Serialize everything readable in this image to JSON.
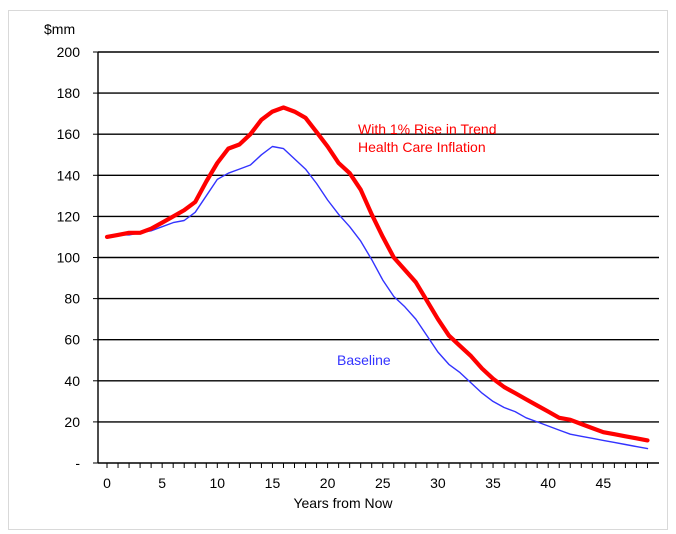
{
  "chart_data": {
    "type": "line",
    "title": "",
    "xlabel": "Years from Now",
    "ylabel": "$mm",
    "xlim": [
      0,
      49
    ],
    "ylim": [
      0,
      200
    ],
    "x_ticks": [
      0,
      5,
      10,
      15,
      20,
      25,
      30,
      35,
      40,
      45
    ],
    "y_ticks": [
      {
        "value": 0,
        "label": "-"
      },
      {
        "value": 20,
        "label": "20"
      },
      {
        "value": 40,
        "label": "40"
      },
      {
        "value": 60,
        "label": "60"
      },
      {
        "value": 80,
        "label": "80"
      },
      {
        "value": 100,
        "label": "100"
      },
      {
        "value": 120,
        "label": "120"
      },
      {
        "value": 140,
        "label": "140"
      },
      {
        "value": 160,
        "label": "160"
      },
      {
        "value": 180,
        "label": "180"
      },
      {
        "value": 200,
        "label": "200"
      }
    ],
    "grid": "horizontal",
    "x": [
      0,
      1,
      2,
      3,
      4,
      5,
      6,
      7,
      8,
      9,
      10,
      11,
      12,
      13,
      14,
      15,
      16,
      17,
      18,
      19,
      20,
      21,
      22,
      23,
      24,
      25,
      26,
      27,
      28,
      29,
      30,
      31,
      32,
      33,
      34,
      35,
      36,
      37,
      38,
      39,
      40,
      41,
      42,
      43,
      44,
      45,
      46,
      47,
      48,
      49
    ],
    "series": [
      {
        "name": "With 1% Rise in Trend Health Care Inflation",
        "label_lines": [
          "With 1% Rise in Trend",
          "Health Care Inflation"
        ],
        "color": "#ff0000",
        "values": [
          110,
          111,
          112,
          112,
          114,
          117,
          120,
          123,
          127,
          137,
          146,
          153,
          155,
          160,
          167,
          171,
          173,
          171,
          168,
          161,
          154,
          146,
          141,
          133,
          121,
          110,
          100,
          94,
          88,
          79,
          70,
          62,
          57,
          52,
          46,
          41,
          37,
          34,
          31,
          28,
          25,
          22,
          21,
          19,
          17,
          15,
          14,
          13,
          12,
          11
        ]
      },
      {
        "name": "Baseline",
        "label_lines": [
          "Baseline"
        ],
        "color": "#3333ff",
        "values": [
          110,
          111,
          111,
          112,
          113,
          115,
          117,
          118,
          122,
          130,
          138,
          141,
          143,
          145,
          150,
          154,
          153,
          148,
          143,
          136,
          128,
          121,
          115,
          108,
          99,
          89,
          81,
          76,
          70,
          62,
          54,
          48,
          44,
          39,
          34,
          30,
          27,
          25,
          22,
          20,
          18,
          16,
          14,
          13,
          12,
          11,
          10,
          9,
          8,
          7
        ]
      }
    ]
  }
}
